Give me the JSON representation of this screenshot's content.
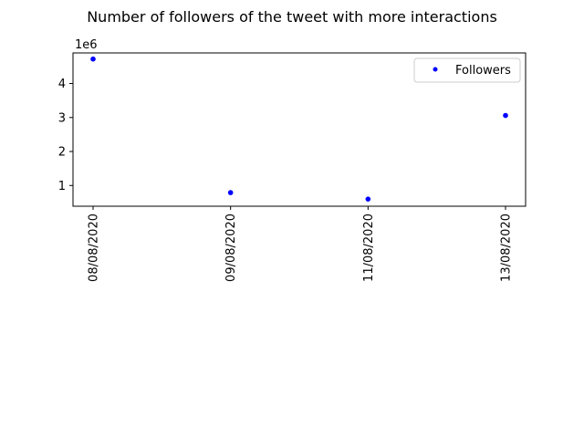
{
  "chart_data": {
    "type": "scatter",
    "title": "Number of followers of the tweet with more interactions",
    "xlabel": "",
    "ylabel": "",
    "categories": [
      "08/08/2020",
      "09/08/2020",
      "11/08/2020",
      "13/08/2020"
    ],
    "series": [
      {
        "name": "Followers",
        "values": [
          4720000,
          790000,
          600000,
          3060000
        ],
        "color": "#0000ff"
      }
    ],
    "y_multiplier_label": "1e6",
    "y_ticks": [
      1,
      2,
      3,
      4
    ],
    "y_tick_labels": [
      "1",
      "2",
      "3",
      "4"
    ],
    "ylim": [
      0.39,
      4.9
    ],
    "y_scale": 1000000,
    "legend": {
      "placement": "top-right"
    },
    "grid": false
  }
}
